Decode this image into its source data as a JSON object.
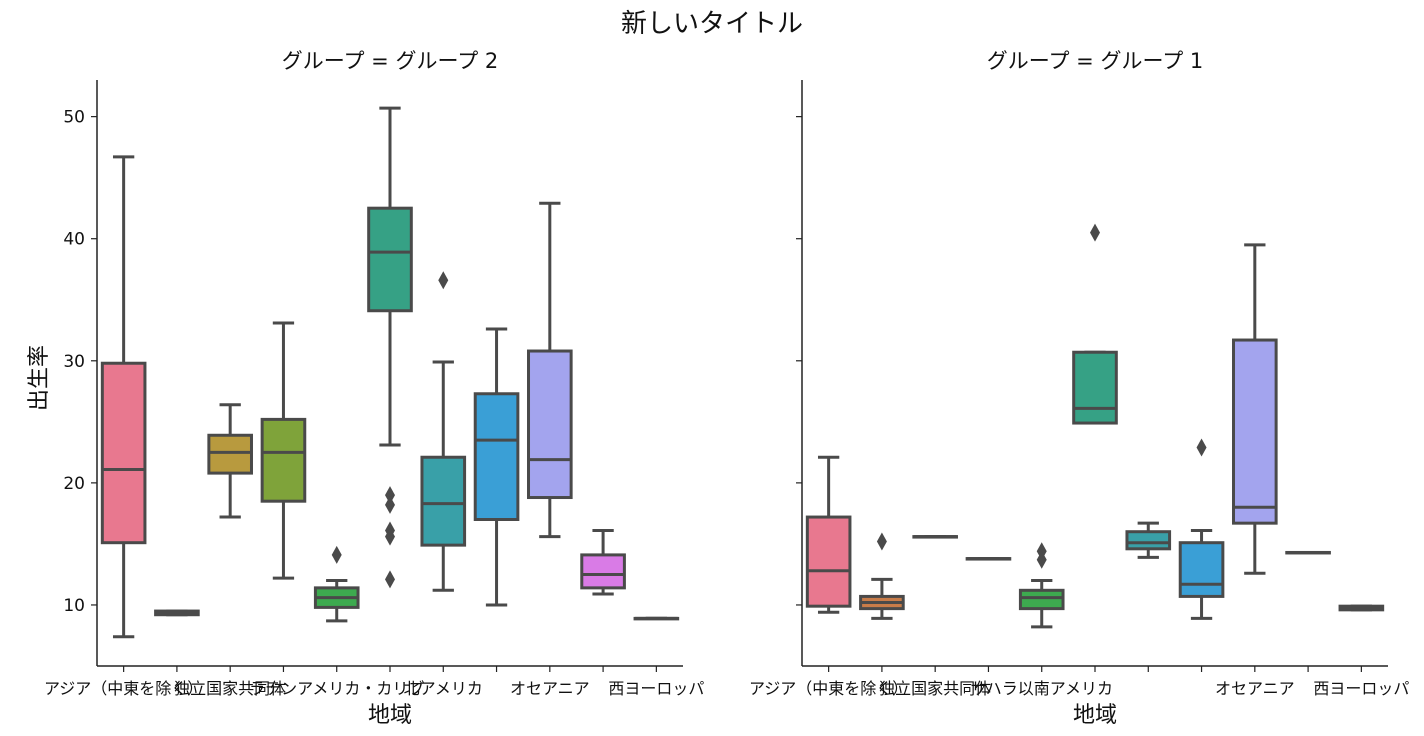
{
  "chart_data": {
    "type": "box",
    "title": "新しいタイトル",
    "xlabel": "地域",
    "ylabel": "出生率",
    "ylim": [
      5,
      53
    ],
    "yticks": [
      10,
      20,
      30,
      40,
      50
    ],
    "colors": [
      "#e8788f",
      "#c87c49",
      "#b89a3e",
      "#7fa33a",
      "#3daa4f",
      "#36a185",
      "#39a0a8",
      "#3a9fd6",
      "#a3a4ee",
      "#d97be6",
      "#f068c0"
    ],
    "panels": [
      {
        "title": "グループ = グループ 2",
        "categories": [
          "アジア（中東を除く）",
          "",
          "独立国家共同体",
          "",
          "ラテンアメリカ・カリブ",
          "",
          "北アメリカ",
          "",
          "オセアニア",
          "",
          "西ヨーロッパ"
        ],
        "boxes": [
          {
            "slot": 0,
            "color_index": 0,
            "q1": 15.1,
            "median": 21.1,
            "q3": 29.8,
            "whislo": 7.4,
            "whishi": 46.7,
            "fliers": []
          },
          {
            "slot": 1,
            "color_index": 1,
            "q1": 9.2,
            "median": 9.35,
            "q3": 9.5,
            "whislo": 9.2,
            "whishi": 9.5,
            "fliers": []
          },
          {
            "slot": 2,
            "color_index": 2,
            "q1": 20.8,
            "median": 22.5,
            "q3": 23.9,
            "whislo": 17.2,
            "whishi": 26.4,
            "fliers": []
          },
          {
            "slot": 3,
            "color_index": 3,
            "q1": 18.5,
            "median": 22.5,
            "q3": 25.2,
            "whislo": 12.2,
            "whishi": 33.1,
            "fliers": []
          },
          {
            "slot": 4,
            "color_index": 4,
            "q1": 9.8,
            "median": 10.6,
            "q3": 11.4,
            "whislo": 8.7,
            "whishi": 12.0,
            "fliers": [
              14.1
            ]
          },
          {
            "slot": 5,
            "color_index": 5,
            "q1": 34.1,
            "median": 38.9,
            "q3": 42.5,
            "whislo": 23.1,
            "whishi": 50.7,
            "fliers": [
              19.0,
              18.2,
              16.1,
              15.6,
              12.1
            ]
          },
          {
            "slot": 6,
            "color_index": 6,
            "q1": 14.9,
            "median": 18.3,
            "q3": 22.1,
            "whislo": 11.2,
            "whishi": 29.9,
            "fliers": [
              36.6
            ]
          },
          {
            "slot": 7,
            "color_index": 7,
            "q1": 17.0,
            "median": 23.5,
            "q3": 27.3,
            "whislo": 10.0,
            "whishi": 32.6,
            "fliers": []
          },
          {
            "slot": 8,
            "color_index": 8,
            "q1": 18.8,
            "median": 21.9,
            "q3": 30.8,
            "whislo": 15.6,
            "whishi": 42.9,
            "fliers": []
          },
          {
            "slot": 9,
            "color_index": 9,
            "q1": 11.4,
            "median": 12.5,
            "q3": 14.1,
            "whislo": 10.9,
            "whishi": 16.1,
            "fliers": []
          },
          {
            "slot": 10,
            "color_index": 10,
            "q1": 8.9,
            "median": 8.9,
            "q3": 8.9,
            "whislo": 8.9,
            "whishi": 8.9,
            "fliers": []
          }
        ]
      },
      {
        "title": "グループ = グループ 1",
        "categories": [
          "アジア（中東を除く）",
          "",
          "独立国家共同体",
          "",
          "サハラ以南アメリカ",
          "",
          "",
          "",
          "オセアニア",
          "",
          "西ヨーロッパ"
        ],
        "boxes": [
          {
            "slot": 0,
            "color_index": 0,
            "q1": 9.9,
            "median": 12.8,
            "q3": 17.2,
            "whislo": 9.4,
            "whishi": 22.1,
            "fliers": []
          },
          {
            "slot": 1,
            "color_index": 1,
            "q1": 9.7,
            "median": 10.2,
            "q3": 10.7,
            "whislo": 8.9,
            "whishi": 12.1,
            "fliers": [
              15.2
            ]
          },
          {
            "slot": 2,
            "color_index": 2,
            "q1": 15.6,
            "median": 15.6,
            "q3": 15.6,
            "whislo": 15.6,
            "whishi": 15.6,
            "fliers": []
          },
          {
            "slot": 3,
            "color_index": 3,
            "q1": 13.8,
            "median": 13.8,
            "q3": 13.8,
            "whislo": 13.8,
            "whishi": 13.8,
            "fliers": []
          },
          {
            "slot": 4,
            "color_index": 4,
            "q1": 9.7,
            "median": 10.6,
            "q3": 11.2,
            "whislo": 8.2,
            "whishi": 12.0,
            "fliers": [
              14.4,
              13.7
            ]
          },
          {
            "slot": 5,
            "color_index": 5,
            "q1": 24.9,
            "median": 26.1,
            "q3": 30.7,
            "whislo": 24.9,
            "whishi": 30.7,
            "fliers": [
              40.5
            ]
          },
          {
            "slot": 6,
            "color_index": 6,
            "q1": 14.6,
            "median": 15.1,
            "q3": 16.0,
            "whislo": 13.9,
            "whishi": 16.7,
            "fliers": []
          },
          {
            "slot": 7,
            "color_index": 7,
            "q1": 10.7,
            "median": 11.7,
            "q3": 15.1,
            "whislo": 8.9,
            "whishi": 16.1,
            "fliers": [
              22.9
            ]
          },
          {
            "slot": 8,
            "color_index": 8,
            "q1": 16.7,
            "median": 18.0,
            "q3": 31.7,
            "whislo": 12.6,
            "whishi": 39.5,
            "fliers": []
          },
          {
            "slot": 9,
            "color_index": 9,
            "q1": 14.3,
            "median": 14.3,
            "q3": 14.3,
            "whislo": 14.3,
            "whishi": 14.3,
            "fliers": []
          },
          {
            "slot": 10,
            "color_index": 10,
            "q1": 9.6,
            "median": 9.75,
            "q3": 9.9,
            "whislo": 9.6,
            "whishi": 9.9,
            "fliers": []
          }
        ]
      }
    ]
  }
}
